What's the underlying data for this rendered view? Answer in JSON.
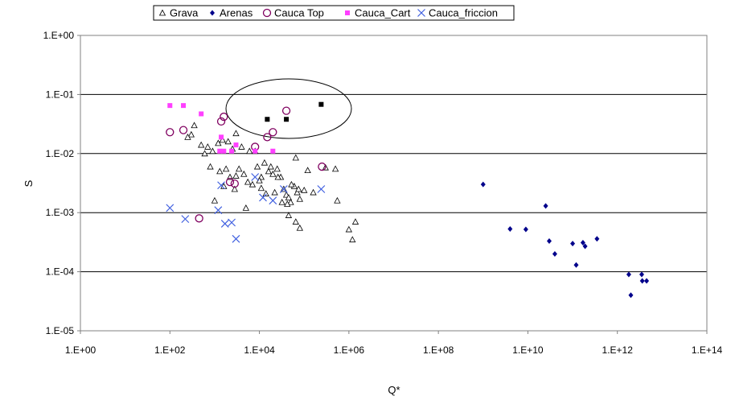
{
  "chart_data": {
    "type": "scatter",
    "title": "",
    "xlabel": "Q*",
    "ylabel": "S",
    "xscale": "log",
    "yscale": "log",
    "xlim": [
      1,
      100000000000000.0
    ],
    "ylim": [
      1e-05,
      1
    ],
    "x_ticks": [
      1,
      100,
      10000,
      1000000,
      100000000,
      10000000000,
      1000000000000,
      100000000000000
    ],
    "x_tick_labels": [
      "1.E+00",
      "1.E+02",
      "1.E+04",
      "1.E+06",
      "1.E+08",
      "1.E+10",
      "1.E+12",
      "1.E+14"
    ],
    "y_ticks": [
      1e-05,
      0.0001,
      0.001,
      0.01,
      0.1,
      1
    ],
    "y_tick_labels": [
      "1.E-05",
      "1.E-04",
      "1.E-03",
      "1.E-02",
      "1.E-01",
      "1.E+00"
    ],
    "grid": "horizontal major lines",
    "legend_position": "top-center",
    "annotation": "ellipse around black square points",
    "series": [
      {
        "name": "Grava",
        "marker": "open-triangle",
        "color": "#000000",
        "points": [
          [
            300,
            0.021
          ],
          [
            350,
            0.03
          ],
          [
            250,
            0.019
          ],
          [
            600,
            0.01
          ],
          [
            700,
            0.013
          ],
          [
            900,
            0.011
          ],
          [
            1200,
            0.015
          ],
          [
            1500,
            0.017
          ],
          [
            2000,
            0.016
          ],
          [
            2500,
            0.012
          ],
          [
            3000,
            0.022
          ],
          [
            4000,
            0.013
          ],
          [
            6000,
            0.011
          ],
          [
            8000,
            0.011
          ],
          [
            500,
            0.014
          ],
          [
            800,
            0.006
          ],
          [
            1300,
            0.005
          ],
          [
            1800,
            0.0055
          ],
          [
            2200,
            0.004
          ],
          [
            3500,
            0.0055
          ],
          [
            4500,
            0.0045
          ],
          [
            5500,
            0.0033
          ],
          [
            7000,
            0.003
          ],
          [
            9000,
            0.006
          ],
          [
            11000,
            0.004
          ],
          [
            13000,
            0.007
          ],
          [
            16000,
            0.005
          ],
          [
            20000,
            0.0045
          ],
          [
            25000,
            0.0055
          ],
          [
            30000,
            0.004
          ],
          [
            35000,
            0.0025
          ],
          [
            40000,
            0.002
          ],
          [
            45000,
            0.0018
          ],
          [
            50000,
            0.0015
          ],
          [
            60000,
            0.0028
          ],
          [
            70000,
            0.0022
          ],
          [
            80000,
            0.0017
          ],
          [
            100000,
            0.0024
          ],
          [
            120000,
            0.0052
          ],
          [
            160000,
            0.0022
          ],
          [
            300000,
            0.0058
          ],
          [
            500000,
            0.0055
          ],
          [
            550000,
            0.0016
          ],
          [
            1000000,
            0.00052
          ],
          [
            1200000,
            0.00035
          ],
          [
            1400000,
            0.0007
          ],
          [
            45000,
            0.0009
          ],
          [
            65000,
            0.0007
          ],
          [
            80000,
            0.00055
          ],
          [
            1000,
            0.0016
          ],
          [
            1600,
            0.0028
          ],
          [
            2800,
            0.0025
          ],
          [
            10000,
            0.0035
          ],
          [
            18000,
            0.006
          ],
          [
            22000,
            0.0022
          ],
          [
            26000,
            0.004
          ],
          [
            32000,
            0.0015
          ],
          [
            65000,
            0.0085
          ],
          [
            42000,
            0.0014
          ],
          [
            52000,
            0.003
          ],
          [
            75000,
            0.0025
          ],
          [
            11000,
            0.0026
          ],
          [
            14000,
            0.0021
          ],
          [
            3000,
            0.0042
          ],
          [
            5000,
            0.0012
          ]
        ]
      },
      {
        "name": "Arenas",
        "marker": "filled-diamond",
        "color": "#00008B",
        "points": [
          [
            1000000000,
            0.003
          ],
          [
            4000000000,
            0.00053
          ],
          [
            9000000000,
            0.00052
          ],
          [
            25000000000,
            0.0013
          ],
          [
            30000000000,
            0.00033
          ],
          [
            40000000000,
            0.0002
          ],
          [
            100000000000,
            0.0003
          ],
          [
            120000000000,
            0.00013
          ],
          [
            170000000000,
            0.00031
          ],
          [
            190000000000,
            0.00027
          ],
          [
            350000000000,
            0.00036
          ],
          [
            1800000000000,
            9e-05
          ],
          [
            2000000000000,
            4e-05
          ],
          [
            3500000000000,
            9e-05
          ],
          [
            3600000000000,
            7e-05
          ],
          [
            4500000000000,
            7e-05
          ]
        ]
      },
      {
        "name": "Cauca Top",
        "marker": "open-circle",
        "color": "#800060",
        "points": [
          [
            100,
            0.023
          ],
          [
            200,
            0.025
          ],
          [
            450,
            0.0008
          ],
          [
            1400,
            0.035
          ],
          [
            1600,
            0.042
          ],
          [
            2200,
            0.0033
          ],
          [
            2800,
            0.0031
          ],
          [
            8000,
            0.013
          ],
          [
            15000,
            0.019
          ],
          [
            20000,
            0.023
          ],
          [
            40000,
            0.053
          ],
          [
            250000,
            0.006
          ]
        ]
      },
      {
        "name": "Cauca_Cart",
        "marker": "filled-square",
        "color": "#FF40FF",
        "points": [
          [
            100,
            0.065
          ],
          [
            200,
            0.065
          ],
          [
            500,
            0.047
          ],
          [
            1400,
            0.019
          ],
          [
            1600,
            0.011
          ],
          [
            2400,
            0.011
          ],
          [
            3000,
            0.014
          ],
          [
            8000,
            0.011
          ],
          [
            20000,
            0.011
          ],
          [
            1300,
            0.011
          ]
        ]
      },
      {
        "name": "Cauca_friccion",
        "marker": "x",
        "color": "#4060E0",
        "points": [
          [
            100,
            0.0012
          ],
          [
            220,
            0.00078
          ],
          [
            1200,
            0.0011
          ],
          [
            1400,
            0.0029
          ],
          [
            1700,
            0.00065
          ],
          [
            2400,
            0.00068
          ],
          [
            3000,
            0.00036
          ],
          [
            8000,
            0.004
          ],
          [
            12000,
            0.0018
          ],
          [
            20000,
            0.0016
          ],
          [
            35000,
            0.0025
          ],
          [
            240000,
            0.0025
          ]
        ]
      },
      {
        "name": "",
        "marker": "black-square",
        "color": "#000000",
        "points": [
          [
            15000,
            0.038
          ],
          [
            40000,
            0.038
          ],
          [
            240000,
            0.068
          ]
        ]
      }
    ]
  }
}
